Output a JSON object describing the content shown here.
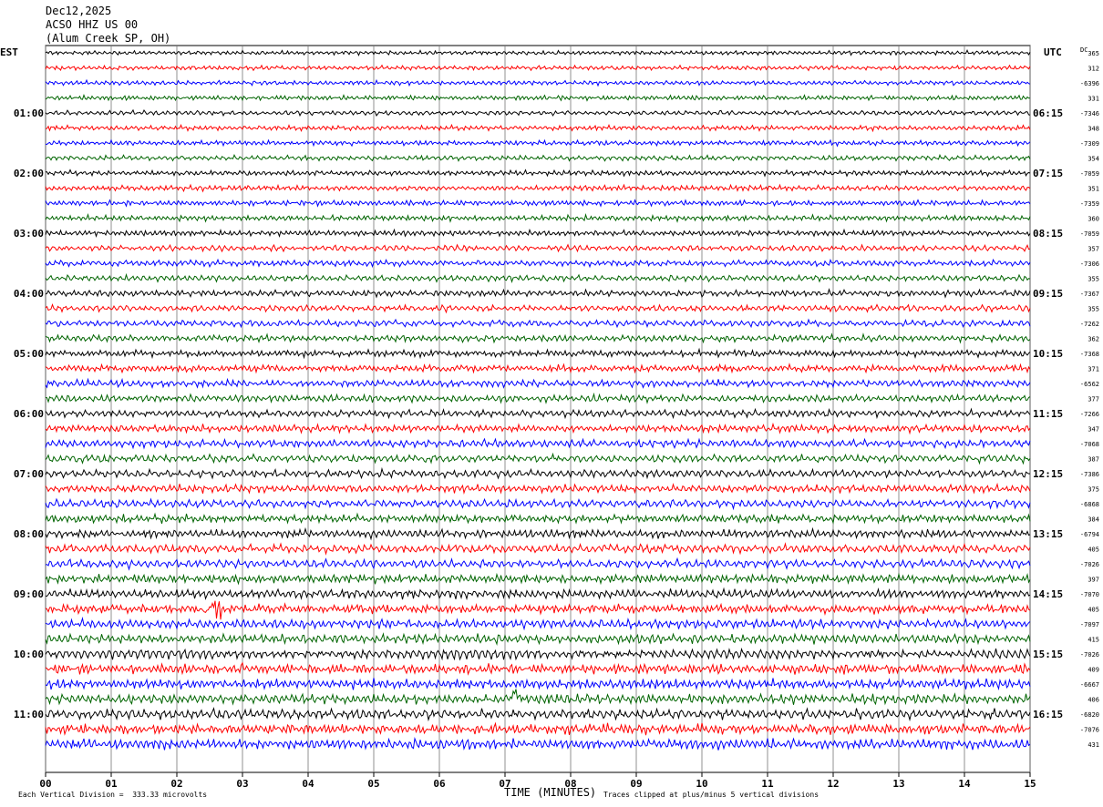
{
  "header": {
    "date": "Dec12,2025",
    "station": "ACSO HHZ US 00",
    "location": "(Alum Creek SP, OH)"
  },
  "chart_data": {
    "type": "line",
    "title": "ACSO HHZ US 00",
    "left_axis_label": "EST",
    "right_axis_label": "UTC",
    "dc_label": "DC",
    "xlabel": "TIME (MINUTES)",
    "xlim": [
      0,
      15
    ],
    "x_ticks": [
      "00",
      "01",
      "02",
      "03",
      "04",
      "05",
      "06",
      "07",
      "08",
      "09",
      "10",
      "11",
      "12",
      "13",
      "14",
      "15"
    ],
    "rows_per_hour": 4,
    "left_hour_labels": [
      "01:00",
      "02:00",
      "03:00",
      "04:00",
      "05:00",
      "06:00",
      "07:00",
      "08:00",
      "09:00",
      "10:00",
      "11:00"
    ],
    "right_hour_labels": [
      "06:15",
      "07:15",
      "08:15",
      "09:15",
      "10:15",
      "11:15",
      "12:15",
      "13:15",
      "14:15",
      "15:15",
      "16:15"
    ],
    "trace_colors": [
      "#000000",
      "#ff0000",
      "#0000ff",
      "#006400"
    ],
    "dc_offsets": [
      "365",
      "312",
      "-6396",
      "331",
      "-7346",
      "348",
      "-7309",
      "354",
      "-7059",
      "351",
      "-7359",
      "360",
      "-7059",
      "357",
      "-7306",
      "355",
      "-7367",
      "355",
      "-7262",
      "362",
      "-7368",
      "371",
      "-6562",
      "377",
      "-7266",
      "347",
      "-7068",
      "387",
      "-7386",
      "375",
      "-6868",
      "384",
      "-6794",
      "405",
      "-7026",
      "397",
      "-7070",
      "405",
      "-7097",
      "415",
      "-7026",
      "409",
      "-6667",
      "406",
      "-6820",
      "-7076",
      "431"
    ],
    "vertical_division": "Each Vertical Division =  333.33 microvolts",
    "clip_note": "Traces clipped at plus/minus 5 vertical divisions"
  }
}
